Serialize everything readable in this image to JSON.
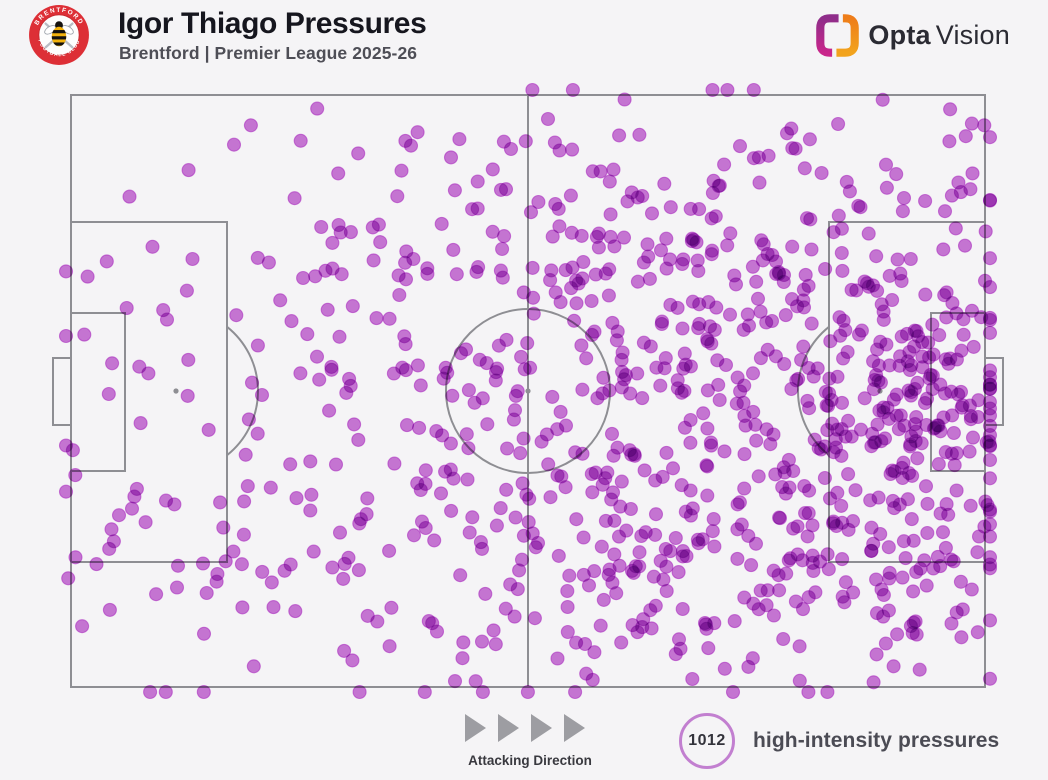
{
  "header": {
    "title": "Igor Thiago Pressures",
    "subtitle": "Brentford | Premier League 2025-26",
    "crest": {
      "ring_text_top": "BRENTFORD",
      "ring_text_bottom": "FOOTBALL CLUB",
      "ring_color": "#dd2f36",
      "bee_yellow": "#f2b20d"
    },
    "provider": {
      "name_bold": "Opta",
      "name_light": "Vision",
      "icon_left_colors": [
        "#8f2d8a",
        "#c9268b"
      ],
      "icon_right_colors": [
        "#f2a31d",
        "#ee7d1a"
      ]
    }
  },
  "footer": {
    "attacking_direction_label": "Attacking Direction",
    "stat_value": "1012",
    "stat_label": "high-intensity pressures"
  },
  "colors": {
    "background": "#f5f4f6",
    "pitch_line": "#8e8e93",
    "dot_fill": "#b233c6",
    "dot_stroke": "#ae27c4",
    "stat_ring": "#c27fd0",
    "arrow_gray": "#9d9da2",
    "title_text": "#16161e",
    "subtitle_text": "#4e4e56"
  },
  "chart_data": {
    "type": "scatter",
    "title": "Igor Thiago Pressures",
    "subtitle": "Brentford | Premier League 2025-26",
    "legend": "1012 high-intensity pressures",
    "total_points": 1012,
    "attacking_direction": "left-to-right",
    "point_color": "#b233c6",
    "point_opacity": 0.66,
    "point_radius": 6.5,
    "coordinate_system": {
      "x_range": [
        0,
        914
      ],
      "y_range": [
        0,
        592
      ],
      "note": "pitch pixel coordinates, left goal to right goal, dense cluster in right attacking third"
    },
    "seed": 1012,
    "clusters": [
      {
        "cx": 180,
        "cy": 240,
        "sdx": 110,
        "sdy": 100,
        "n": 45
      },
      {
        "cx": 200,
        "cy": 440,
        "sdx": 110,
        "sdy": 80,
        "n": 40
      },
      {
        "cx": 90,
        "cy": 350,
        "sdx": 60,
        "sdy": 120,
        "n": 20
      },
      {
        "cx": 430,
        "cy": 120,
        "sdx": 130,
        "sdy": 60,
        "n": 70
      },
      {
        "cx": 420,
        "cy": 300,
        "sdx": 120,
        "sdy": 100,
        "n": 80
      },
      {
        "cx": 450,
        "cy": 480,
        "sdx": 130,
        "sdy": 70,
        "n": 80
      },
      {
        "cx": 560,
        "cy": 200,
        "sdx": 100,
        "sdy": 80,
        "n": 75
      },
      {
        "cx": 570,
        "cy": 400,
        "sdx": 100,
        "sdy": 90,
        "n": 75
      },
      {
        "cx": 700,
        "cy": 120,
        "sdx": 120,
        "sdy": 60,
        "n": 70
      },
      {
        "cx": 690,
        "cy": 300,
        "sdx": 100,
        "sdy": 90,
        "n": 90
      },
      {
        "cx": 700,
        "cy": 480,
        "sdx": 110,
        "sdy": 70,
        "n": 90
      },
      {
        "cx": 830,
        "cy": 200,
        "sdx": 80,
        "sdy": 80,
        "n": 70
      },
      {
        "cx": 850,
        "cy": 450,
        "sdx": 70,
        "sdy": 60,
        "n": 60
      },
      {
        "cx": 860,
        "cy": 300,
        "sdx": 42,
        "sdy": 52,
        "n": 95
      },
      {
        "cx": 790,
        "cy": 380,
        "sdx": 60,
        "sdy": 60,
        "n": 52
      }
    ]
  }
}
